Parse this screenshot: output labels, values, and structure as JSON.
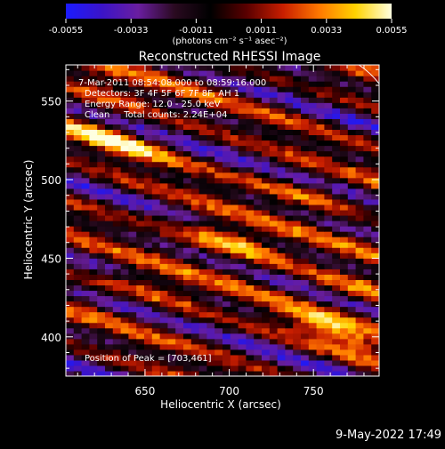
{
  "chart_data": {
    "type": "heatmap",
    "title": "Reconstructed RHESSI Image",
    "xlabel": "Heliocentric X (arcsec)",
    "ylabel": "Heliocentric Y (arcsec)",
    "xlim": [
      603,
      789
    ],
    "ylim": [
      375,
      573
    ],
    "x_ticks": [
      650,
      700,
      750
    ],
    "y_ticks": [
      400,
      450,
      500,
      550
    ],
    "colorbar": {
      "min": -0.0055,
      "max": 0.0055,
      "ticks": [
        "-0.0055",
        "-0.0033",
        "-0.0011",
        "0.0011",
        "0.0033",
        "0.0055"
      ],
      "unit_label": "(photons cm⁻² s⁻¹ asec⁻²)",
      "colors": [
        "#1b1bff",
        "#3b14c8",
        "#6a1ea0",
        "#2a0a20",
        "#000000",
        "#5a0000",
        "#c81e00",
        "#ff7800",
        "#ffd200",
        "#ffffe0"
      ]
    },
    "annotations": {
      "time": "7-Mar-2011 08:54:08.000 to 08:59:16.000",
      "detectors": "Detectors: 3F 4F 5F 6F 7F 8F, AH 1",
      "energy": "Energy Range: 12.0 - 25.0 keV",
      "clean": "Clean     Total counts: 2.24E+04",
      "peak": "Position of Peak = [703,461]"
    },
    "peaks": [
      {
        "x": 703,
        "y": 461,
        "value": 0.0055
      },
      {
        "x": 762,
        "y": 404,
        "value": 0.0046
      },
      {
        "x": 625,
        "y": 558,
        "value": 0.004
      },
      {
        "x": 630,
        "y": 525,
        "value": 0.0036
      },
      {
        "x": 780,
        "y": 428,
        "value": 0.0034
      },
      {
        "x": 655,
        "y": 430,
        "value": 0.003
      },
      {
        "x": 745,
        "y": 492,
        "value": 0.0028
      }
    ]
  },
  "footer": {
    "date": "9-May-2022 17:49"
  }
}
